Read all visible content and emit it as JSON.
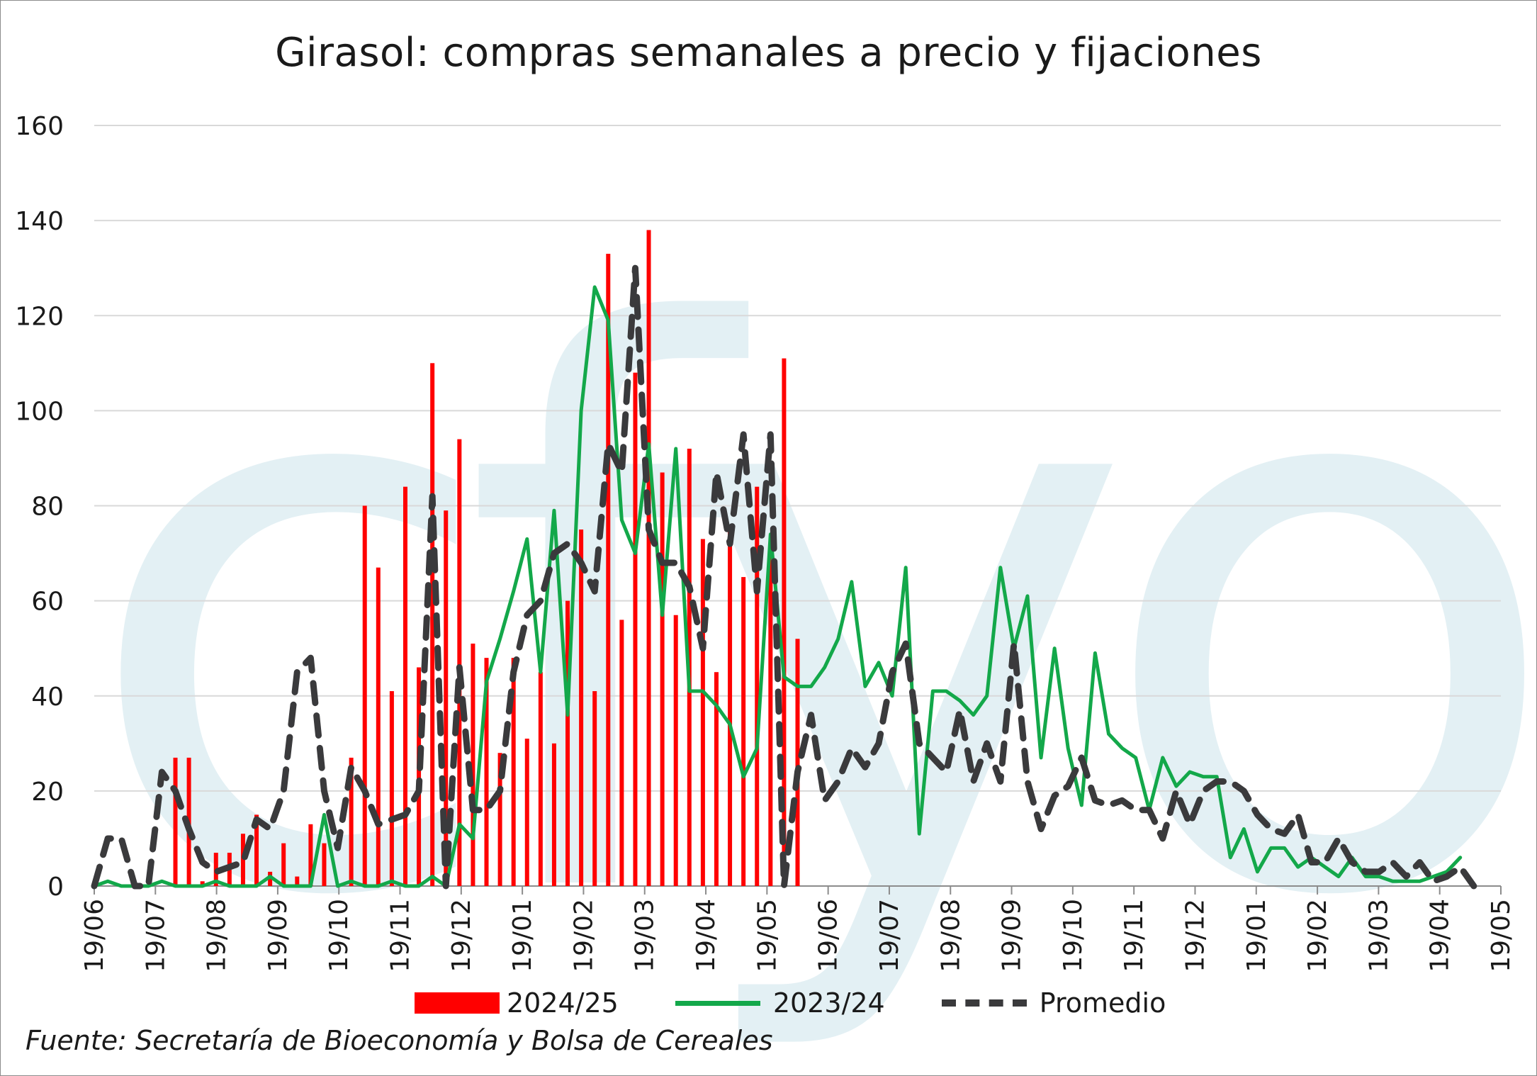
{
  "chart_data": {
    "type": "bar",
    "title": "Girasol: compras semanales a precio y fijaciones",
    "source": "Fuente: Secretaría de Bioeconomía y Bolsa de Cereales",
    "watermark": "cfyo",
    "ylim": [
      0,
      160
    ],
    "y_ticks": [
      0,
      20,
      40,
      60,
      80,
      100,
      120,
      140,
      160
    ],
    "x_ticks": [
      "19/06",
      "19/07",
      "19/08",
      "19/09",
      "19/10",
      "19/11",
      "19/12",
      "19/01",
      "19/02",
      "19/03",
      "19/04",
      "19/05",
      "19/06",
      "19/07",
      "19/08",
      "19/09",
      "19/10",
      "19/11",
      "19/12",
      "19/01",
      "19/02",
      "19/03",
      "19/04",
      "19/05"
    ],
    "xlabel": "",
    "ylabel": "",
    "grid": true,
    "legend_position": "bottom",
    "colors": {
      "bars": "#ff0000",
      "green": "#13a84a",
      "dash": "#3a3a3c",
      "grid": "#d9d9d9",
      "watermark": "#e3f0f4"
    },
    "series": [
      {
        "name": "2024/25",
        "kind": "bar",
        "values": [
          0,
          0,
          0,
          0,
          0,
          27,
          27,
          1,
          7,
          7,
          11,
          15,
          3,
          9,
          2,
          13,
          9,
          0,
          27,
          80,
          67,
          41,
          84,
          46,
          110,
          79,
          94,
          51,
          48,
          28,
          48,
          31,
          45,
          30,
          60,
          75,
          41,
          133,
          56,
          108,
          138,
          87,
          57,
          92,
          73,
          45,
          75,
          65,
          84,
          70,
          111,
          52
        ]
      },
      {
        "name": "2023/24",
        "kind": "line",
        "values": [
          0,
          1,
          0,
          0,
          0,
          1,
          0,
          0,
          0,
          1,
          0,
          0,
          0,
          2,
          0,
          0,
          0,
          15,
          0,
          1,
          0,
          0,
          1,
          0,
          0,
          2,
          0,
          13,
          10,
          43,
          52,
          62,
          73,
          45,
          79,
          36,
          100,
          126,
          119,
          77,
          70,
          93,
          57,
          92,
          41,
          41,
          38,
          34,
          23,
          29,
          74,
          44,
          42,
          42,
          46,
          52,
          64,
          42,
          47,
          40,
          67,
          11,
          41,
          41,
          39,
          36,
          40,
          67,
          50,
          61,
          27,
          50,
          29,
          17,
          49,
          32,
          29,
          27,
          16,
          27,
          21,
          24,
          23,
          23,
          6,
          12,
          3,
          8,
          8,
          4,
          6,
          4,
          2,
          6,
          2,
          2,
          1,
          1,
          1,
          2,
          3,
          6
        ]
      },
      {
        "name": "Promedio",
        "kind": "line",
        "values": [
          0,
          10,
          10,
          0,
          0,
          24,
          20,
          12,
          5,
          3,
          4,
          5,
          14,
          12,
          20,
          45,
          48,
          20,
          8,
          25,
          20,
          13,
          14,
          15,
          20,
          82,
          0,
          46,
          16,
          16,
          20,
          45,
          57,
          60,
          70,
          72,
          68,
          62,
          93,
          87,
          130,
          75,
          68,
          68,
          63,
          50,
          87,
          72,
          95,
          62,
          95,
          0,
          24,
          36,
          18,
          22,
          29,
          25,
          30,
          45,
          51,
          30,
          27,
          24,
          37,
          22,
          30,
          22,
          51,
          22,
          12,
          19,
          21,
          27,
          18,
          17,
          18,
          16,
          16,
          10,
          20,
          13,
          20,
          22,
          22,
          20,
          15,
          12,
          11,
          15,
          5,
          5,
          10,
          5,
          3,
          3,
          5,
          2,
          5,
          1,
          2,
          4,
          0
        ]
      }
    ]
  }
}
